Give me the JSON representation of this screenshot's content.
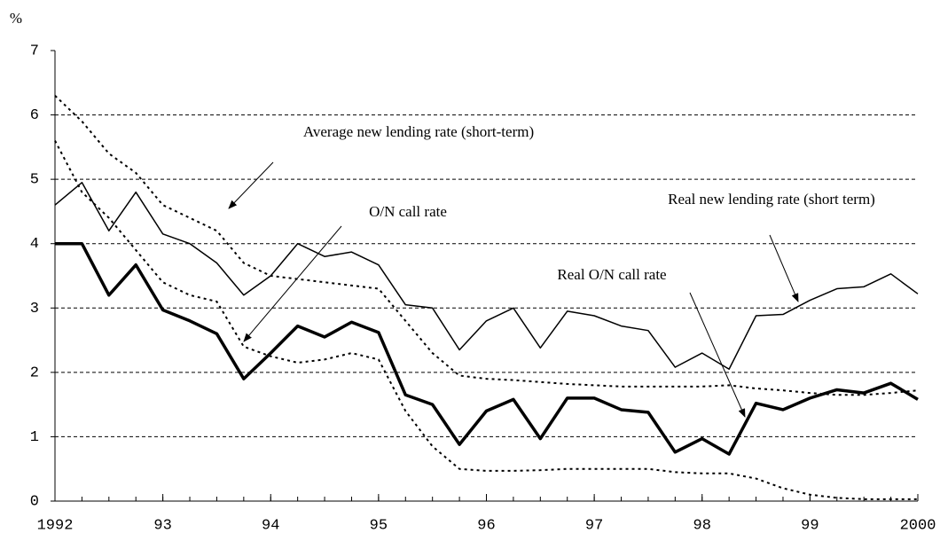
{
  "chart_data": {
    "type": "line",
    "y_label": "%",
    "x": [
      1992,
      1992.25,
      1992.5,
      1992.75,
      1993,
      1993.25,
      1993.5,
      1993.75,
      1994,
      1994.25,
      1994.5,
      1994.75,
      1995,
      1995.25,
      1995.5,
      1995.75,
      1996,
      1996.25,
      1996.5,
      1996.75,
      1997,
      1997.25,
      1997.5,
      1997.75,
      1998,
      1998.25,
      1998.5,
      1998.75,
      1999,
      1999.25,
      1999.5,
      1999.75,
      2000
    ],
    "series": [
      {
        "name": "Average new lending rate (short-term)",
        "color": "#000000",
        "dash": "3,4",
        "width": 2,
        "values": [
          6.3,
          5.9,
          5.4,
          5.1,
          4.6,
          4.4,
          4.2,
          3.7,
          3.5,
          3.45,
          3.4,
          3.35,
          3.3,
          2.8,
          2.3,
          1.95,
          1.9,
          1.88,
          1.85,
          1.82,
          1.8,
          1.78,
          1.78,
          1.78,
          1.78,
          1.8,
          1.75,
          1.72,
          1.68,
          1.65,
          1.65,
          1.68,
          1.72
        ]
      },
      {
        "name": "O/N call rate",
        "color": "#000000",
        "dash": "3,4",
        "width": 2,
        "values": [
          5.6,
          4.8,
          4.4,
          3.9,
          3.4,
          3.2,
          3.1,
          2.4,
          2.25,
          2.15,
          2.2,
          2.3,
          2.2,
          1.4,
          0.85,
          0.5,
          0.47,
          0.47,
          0.48,
          0.5,
          0.5,
          0.5,
          0.5,
          0.45,
          0.43,
          0.43,
          0.35,
          0.2,
          0.1,
          0.05,
          0.03,
          0.03,
          0.03
        ]
      },
      {
        "name": "Real new lending rate (short term)",
        "color": "#000000",
        "dash": "none",
        "width": 1.5,
        "values": [
          4.6,
          4.95,
          4.2,
          4.8,
          4.15,
          4.0,
          3.7,
          3.2,
          3.5,
          4.0,
          3.8,
          3.87,
          3.67,
          3.05,
          3.0,
          2.35,
          2.8,
          3.0,
          2.38,
          2.95,
          2.88,
          2.72,
          2.65,
          2.08,
          2.3,
          2.05,
          2.88,
          2.9,
          3.12,
          3.3,
          3.33,
          3.53,
          3.22
        ]
      },
      {
        "name": "Real O/N call rate",
        "color": "#000000",
        "dash": "none",
        "width": 3.5,
        "values": [
          4.0,
          4.0,
          3.2,
          3.67,
          2.97,
          2.8,
          2.6,
          1.9,
          2.3,
          2.72,
          2.55,
          2.78,
          2.62,
          1.65,
          1.5,
          0.88,
          1.4,
          1.58,
          0.97,
          1.6,
          1.6,
          1.42,
          1.38,
          0.76,
          0.97,
          0.73,
          1.52,
          1.42,
          1.6,
          1.73,
          1.68,
          1.83,
          1.58
        ]
      }
    ],
    "xlim": [
      1992,
      2000
    ],
    "xticks": [
      1992,
      {
        "value": 1993,
        "label": "93"
      },
      {
        "value": 1994,
        "label": "94"
      },
      {
        "value": 1995,
        "label": "95"
      },
      {
        "value": 1996,
        "label": "96"
      },
      {
        "value": 1997,
        "label": "97"
      },
      {
        "value": 1998,
        "label": "98"
      },
      {
        "value": 1999,
        "label": "99"
      },
      {
        "value": 2000,
        "label": "2000"
      }
    ],
    "ylim": [
      0,
      7
    ],
    "yticks": [
      0,
      1,
      2,
      3,
      4,
      5,
      6,
      7
    ],
    "grid": true
  }
}
